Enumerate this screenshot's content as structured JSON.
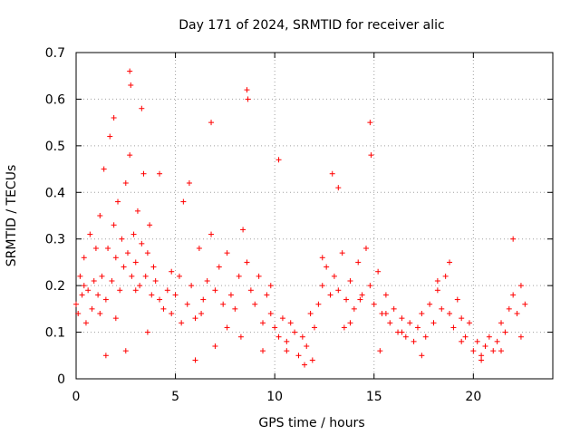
{
  "chart_data": {
    "type": "scatter",
    "title": "Day 171 of 2024, SRMTID for receiver alic",
    "xlabel": "GPS time / hours",
    "ylabel": "SRMTID / TECUs",
    "xlim": [
      0,
      24
    ],
    "ylim": [
      0,
      0.7
    ],
    "xticks": [
      0,
      5,
      10,
      15,
      20
    ],
    "yticks": [
      0,
      0.1,
      0.2,
      0.3,
      0.4,
      0.5,
      0.6,
      0.7
    ],
    "xtick_labels": [
      "0",
      "5",
      "10",
      "15",
      "20"
    ],
    "ytick_labels": [
      "0",
      "0.1",
      "0.2",
      "0.3",
      "0.4",
      "0.5",
      "0.6",
      "0.7"
    ],
    "grid": true,
    "marker": "+",
    "color": "#ff0000",
    "series": [
      {
        "name": "SRMTID",
        "x": [
          0.0,
          0.1,
          0.2,
          0.3,
          0.4,
          0.5,
          0.6,
          0.7,
          0.8,
          0.9,
          1.0,
          1.1,
          1.2,
          1.3,
          1.4,
          1.5,
          1.6,
          1.7,
          1.8,
          1.9,
          2.0,
          2.1,
          2.2,
          2.3,
          2.4,
          2.5,
          2.6,
          2.7,
          2.8,
          2.9,
          3.0,
          3.1,
          3.2,
          3.3,
          3.4,
          3.5,
          3.6,
          3.7,
          3.8,
          3.9,
          4.0,
          4.2,
          4.4,
          4.6,
          4.8,
          5.0,
          5.2,
          5.4,
          5.6,
          5.8,
          6.0,
          6.2,
          6.4,
          6.6,
          6.8,
          7.0,
          7.2,
          7.4,
          7.6,
          7.8,
          8.0,
          8.2,
          8.4,
          8.6,
          8.8,
          9.0,
          9.2,
          9.4,
          9.6,
          9.8,
          10.0,
          10.2,
          10.4,
          10.6,
          10.8,
          11.0,
          11.2,
          11.4,
          11.6,
          11.8,
          12.0,
          12.2,
          12.4,
          12.6,
          12.8,
          13.0,
          13.2,
          13.4,
          13.6,
          13.8,
          14.0,
          14.2,
          14.4,
          14.6,
          14.8,
          15.0,
          15.2,
          15.4,
          15.6,
          15.8,
          16.0,
          16.2,
          16.4,
          16.6,
          16.8,
          17.0,
          17.2,
          17.4,
          17.6,
          17.8,
          18.0,
          18.2,
          18.4,
          18.6,
          18.8,
          19.0,
          19.2,
          19.4,
          19.6,
          19.8,
          20.0,
          20.2,
          20.4,
          20.6,
          20.8,
          21.0,
          21.2,
          21.4,
          21.6,
          21.8,
          22.0,
          22.2,
          22.4,
          22.6,
          1.9,
          2.7,
          2.75,
          3.3,
          4.2,
          5.7,
          6.8,
          8.6,
          8.65,
          10.2,
          12.9,
          13.2,
          14.8,
          14.85,
          1.5,
          2.5,
          3.6,
          6.0,
          7.0,
          9.4,
          11.5,
          13.5,
          15.3,
          18.8,
          22.0,
          0.4,
          1.2,
          2.0,
          3.0,
          4.8,
          5.3,
          6.3,
          7.6,
          8.3,
          9.8,
          10.6,
          11.9,
          12.4,
          13.8,
          14.3,
          15.6,
          16.4,
          17.4,
          18.2,
          19.4,
          20.4,
          21.4,
          22.4
        ],
        "y": [
          0.16,
          0.14,
          0.22,
          0.18,
          0.26,
          0.12,
          0.19,
          0.31,
          0.15,
          0.21,
          0.28,
          0.18,
          0.35,
          0.22,
          0.45,
          0.17,
          0.28,
          0.52,
          0.21,
          0.33,
          0.26,
          0.38,
          0.19,
          0.3,
          0.24,
          0.42,
          0.27,
          0.48,
          0.22,
          0.31,
          0.25,
          0.36,
          0.2,
          0.29,
          0.44,
          0.22,
          0.27,
          0.33,
          0.18,
          0.24,
          0.21,
          0.17,
          0.15,
          0.19,
          0.14,
          0.18,
          0.22,
          0.38,
          0.16,
          0.2,
          0.13,
          0.28,
          0.17,
          0.21,
          0.31,
          0.19,
          0.24,
          0.16,
          0.27,
          0.18,
          0.15,
          0.22,
          0.32,
          0.25,
          0.19,
          0.16,
          0.22,
          0.12,
          0.18,
          0.14,
          0.11,
          0.09,
          0.13,
          0.08,
          0.12,
          0.1,
          0.05,
          0.09,
          0.07,
          0.14,
          0.11,
          0.16,
          0.2,
          0.24,
          0.18,
          0.22,
          0.19,
          0.27,
          0.17,
          0.21,
          0.15,
          0.25,
          0.18,
          0.28,
          0.2,
          0.16,
          0.23,
          0.14,
          0.18,
          0.12,
          0.15,
          0.1,
          0.13,
          0.09,
          0.12,
          0.08,
          0.11,
          0.14,
          0.09,
          0.16,
          0.12,
          0.19,
          0.15,
          0.22,
          0.14,
          0.11,
          0.17,
          0.13,
          0.09,
          0.12,
          0.06,
          0.08,
          0.05,
          0.07,
          0.09,
          0.06,
          0.08,
          0.12,
          0.1,
          0.15,
          0.18,
          0.14,
          0.2,
          0.16,
          0.56,
          0.66,
          0.63,
          0.58,
          0.44,
          0.42,
          0.55,
          0.62,
          0.6,
          0.47,
          0.44,
          0.41,
          0.55,
          0.48,
          0.05,
          0.06,
          0.1,
          0.04,
          0.07,
          0.06,
          0.03,
          0.11,
          0.06,
          0.25,
          0.3,
          0.2,
          0.14,
          0.13,
          0.19,
          0.23,
          0.12,
          0.14,
          0.11,
          0.09,
          0.2,
          0.06,
          0.04,
          0.26,
          0.12,
          0.17,
          0.14,
          0.1,
          0.05,
          0.21,
          0.08,
          0.04,
          0.06,
          0.09
        ]
      }
    ]
  }
}
